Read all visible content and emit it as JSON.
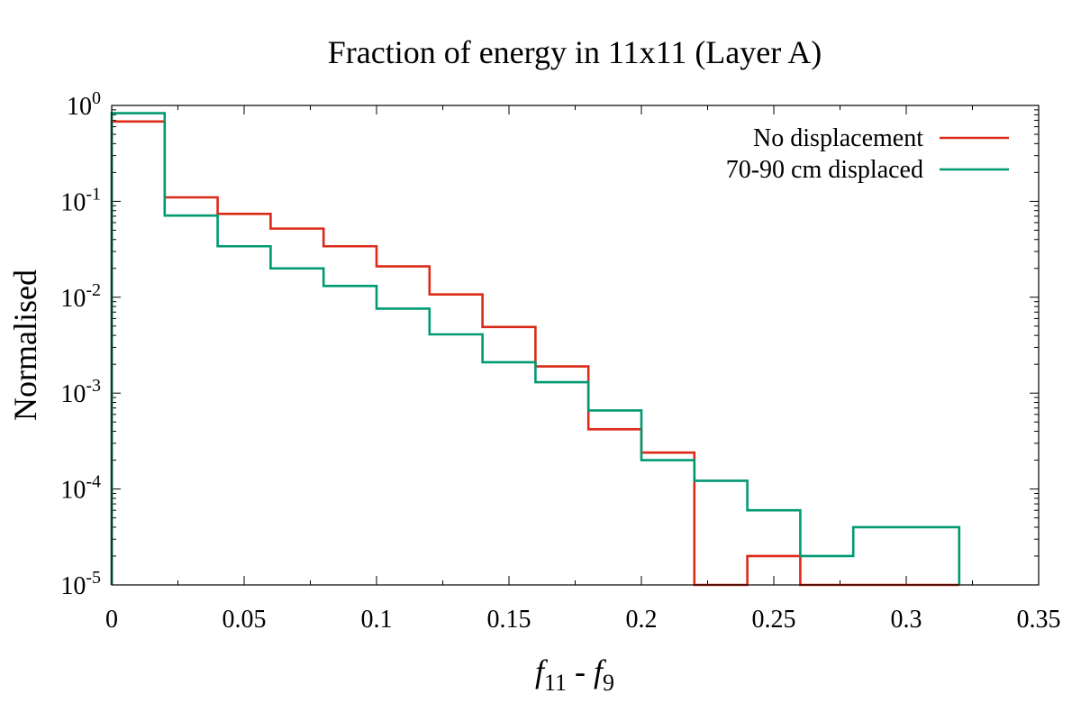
{
  "chart_data": {
    "type": "histogram",
    "title": "Fraction of energy in 11x11 (Layer A)",
    "xlabel": "f11 - f9",
    "xlabel_parts": {
      "f": "f",
      "sub_a": "11",
      "minus": " - ",
      "sub_b": "9"
    },
    "ylabel": "Normalised",
    "xscale": "linear",
    "yscale": "log",
    "xlim": [
      0,
      0.35
    ],
    "ylim": [
      1e-05,
      1
    ],
    "x_ticks": [
      "0",
      "0.05",
      "0.1",
      "0.15",
      "0.2",
      "0.25",
      "0.3",
      "0.35"
    ],
    "x_tick_values": [
      0,
      0.05,
      0.1,
      0.15,
      0.2,
      0.25,
      0.3,
      0.35
    ],
    "y_ticks": [
      {
        "base": "10",
        "exp": "0",
        "value": 1
      },
      {
        "base": "10",
        "exp": "-1",
        "value": 0.1
      },
      {
        "base": "10",
        "exp": "-2",
        "value": 0.01
      },
      {
        "base": "10",
        "exp": "-3",
        "value": 0.001
      },
      {
        "base": "10",
        "exp": "-4",
        "value": 0.0001
      },
      {
        "base": "10",
        "exp": "-5",
        "value": 1e-05
      }
    ],
    "bin_edges": [
      0,
      0.02,
      0.04,
      0.06,
      0.08,
      0.1,
      0.12,
      0.14,
      0.16,
      0.18,
      0.2,
      0.22,
      0.24,
      0.26,
      0.28,
      0.3,
      0.32
    ],
    "legend_position": "top-right",
    "series": [
      {
        "name": "No displacement",
        "color": "#dc2a18",
        "values": [
          0.68,
          0.11,
          0.074,
          0.052,
          0.034,
          0.021,
          0.0107,
          0.0049,
          0.0019,
          0.00042,
          0.00024,
          1e-05,
          2e-05,
          0,
          0,
          0
        ]
      },
      {
        "name": "70-90 cm displaced",
        "color": "#009a72",
        "values": [
          0.83,
          0.071,
          0.034,
          0.02,
          0.0131,
          0.0076,
          0.0041,
          0.0021,
          0.0013,
          0.00066,
          0.0002,
          0.000122,
          6e-05,
          2e-05,
          4e-05,
          4e-05
        ]
      }
    ]
  }
}
